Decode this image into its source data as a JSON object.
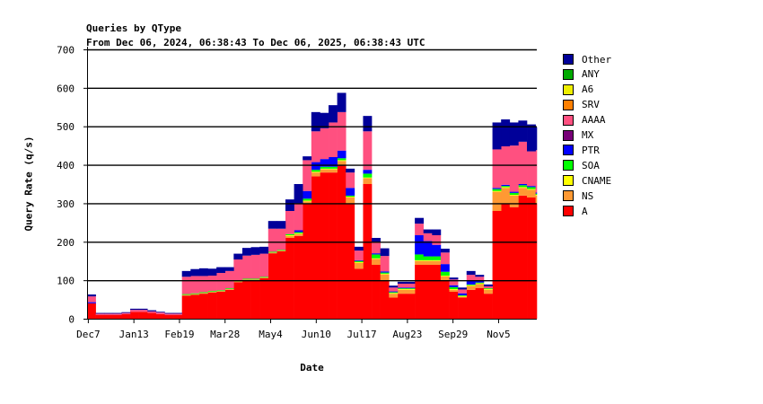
{
  "chart_data": {
    "type": "area",
    "stacked": true,
    "title": "Queries by QType",
    "subtitle": "From Dec 06, 2024, 06:38:43 To Dec 06, 2025, 06:38:43 UTC",
    "xlabel": "Date",
    "ylabel": "Query Rate (q/s)",
    "ylim": [
      0,
      700
    ],
    "yticks": [
      "0",
      "100",
      "200",
      "300",
      "400",
      "500",
      "600",
      "700"
    ],
    "xlim": [
      "2024-12-06",
      "2025-12-06"
    ],
    "xticks": [
      {
        "date": "2024-12-07",
        "label": "Dec7"
      },
      {
        "date": "2025-01-13",
        "label": "Jan13"
      },
      {
        "date": "2025-02-19",
        "label": "Feb19"
      },
      {
        "date": "2025-03-28",
        "label": "Mar28"
      },
      {
        "date": "2025-05-04",
        "label": "May4"
      },
      {
        "date": "2025-06-10",
        "label": "Jun10"
      },
      {
        "date": "2025-07-17",
        "label": "Jul17"
      },
      {
        "date": "2025-08-23",
        "label": "Aug23"
      },
      {
        "date": "2025-09-29",
        "label": "Sep29"
      },
      {
        "date": "2025-11-05",
        "label": "Nov5"
      }
    ],
    "grid": "horizontal",
    "legend_placement": "right",
    "x": [
      "2024-12-06",
      "2024-12-13",
      "2024-12-20",
      "2024-12-27",
      "2025-01-03",
      "2025-01-10",
      "2025-01-17",
      "2025-01-24",
      "2025-01-31",
      "2025-02-07",
      "2025-02-14",
      "2025-02-21",
      "2025-02-28",
      "2025-03-07",
      "2025-03-14",
      "2025-03-21",
      "2025-03-28",
      "2025-04-04",
      "2025-04-11",
      "2025-04-18",
      "2025-04-25",
      "2025-05-02",
      "2025-05-09",
      "2025-05-16",
      "2025-05-23",
      "2025-05-30",
      "2025-06-06",
      "2025-06-13",
      "2025-06-20",
      "2025-06-27",
      "2025-07-04",
      "2025-07-11",
      "2025-07-18",
      "2025-07-25",
      "2025-08-01",
      "2025-08-08",
      "2025-08-15",
      "2025-08-22",
      "2025-08-29",
      "2025-09-05",
      "2025-09-12",
      "2025-09-19",
      "2025-09-26",
      "2025-10-03",
      "2025-10-10",
      "2025-10-17",
      "2025-10-24",
      "2025-10-31",
      "2025-11-07",
      "2025-11-14",
      "2025-11-21",
      "2025-11-28",
      "2025-12-05"
    ],
    "series": [
      {
        "name": "A",
        "color": "#ff0000",
        "values": [
          40,
          10,
          10,
          10,
          12,
          18,
          18,
          15,
          12,
          10,
          10,
          60,
          62,
          65,
          68,
          70,
          75,
          95,
          100,
          100,
          105,
          170,
          175,
          210,
          215,
          300,
          370,
          380,
          380,
          400,
          300,
          130,
          350,
          140,
          100,
          55,
          65,
          65,
          140,
          140,
          140,
          100,
          70,
          55,
          75,
          80,
          65,
          280,
          300,
          290,
          320,
          315,
          300
        ]
      },
      {
        "name": "NS",
        "color": "#ff9933",
        "values": [
          0,
          0,
          0,
          0,
          0,
          0,
          0,
          0,
          0,
          0,
          0,
          2,
          2,
          2,
          2,
          2,
          2,
          2,
          2,
          2,
          2,
          2,
          2,
          5,
          5,
          5,
          10,
          8,
          8,
          10,
          15,
          15,
          15,
          15,
          15,
          10,
          10,
          10,
          10,
          10,
          10,
          10,
          5,
          2,
          10,
          10,
          10,
          50,
          40,
          30,
          20,
          20,
          20
        ]
      },
      {
        "name": "CNAME",
        "color": "#ffff00",
        "values": [
          0,
          0,
          0,
          0,
          0,
          0,
          0,
          0,
          0,
          0,
          0,
          0,
          0,
          0,
          0,
          0,
          0,
          0,
          0,
          0,
          0,
          0,
          0,
          2,
          2,
          2,
          2,
          2,
          2,
          2,
          2,
          2,
          2,
          2,
          2,
          2,
          2,
          2,
          2,
          2,
          2,
          2,
          2,
          2,
          2,
          2,
          2,
          2,
          2,
          2,
          2,
          2,
          2
        ]
      },
      {
        "name": "SOA",
        "color": "#00ff00",
        "values": [
          0,
          0,
          0,
          0,
          0,
          0,
          0,
          0,
          0,
          0,
          0,
          2,
          2,
          2,
          2,
          2,
          2,
          2,
          2,
          2,
          2,
          2,
          2,
          3,
          3,
          5,
          5,
          5,
          5,
          5,
          3,
          3,
          10,
          10,
          3,
          2,
          2,
          2,
          15,
          10,
          10,
          10,
          5,
          2,
          2,
          2,
          2,
          5,
          3,
          5,
          5,
          5,
          3
        ]
      },
      {
        "name": "PTR",
        "color": "#0000ff",
        "values": [
          3,
          0,
          0,
          0,
          0,
          0,
          0,
          0,
          0,
          0,
          0,
          0,
          0,
          0,
          0,
          0,
          0,
          0,
          0,
          0,
          0,
          0,
          0,
          0,
          5,
          20,
          20,
          20,
          25,
          20,
          20,
          2,
          10,
          3,
          3,
          2,
          2,
          2,
          50,
          40,
          30,
          20,
          5,
          5,
          10,
          5,
          0,
          3,
          3,
          3,
          3,
          3,
          3
        ]
      },
      {
        "name": "MX",
        "color": "#770077",
        "values": [
          0,
          0,
          0,
          0,
          0,
          0,
          0,
          0,
          0,
          0,
          0,
          0,
          0,
          0,
          0,
          0,
          0,
          0,
          0,
          0,
          0,
          0,
          0,
          0,
          0,
          0,
          0,
          0,
          0,
          0,
          0,
          0,
          0,
          0,
          0,
          0,
          0,
          0,
          0,
          0,
          0,
          0,
          0,
          0,
          0,
          0,
          0,
          0,
          0,
          0,
          0,
          0,
          0
        ]
      },
      {
        "name": "AAAA",
        "color": "#ff5080",
        "values": [
          15,
          3,
          3,
          3,
          3,
          5,
          5,
          4,
          4,
          3,
          3,
          45,
          45,
          42,
          40,
          45,
          45,
          55,
          60,
          62,
          60,
          60,
          55,
          60,
          70,
          80,
          80,
          80,
          90,
          100,
          40,
          25,
          100,
          30,
          40,
          10,
          10,
          10,
          30,
          20,
          25,
          30,
          15,
          10,
          15,
          10,
          5,
          100,
          100,
          120,
          110,
          90,
          110
        ]
      },
      {
        "name": "SRV",
        "color": "#ff7f00",
        "values": [
          0,
          0,
          0,
          0,
          0,
          0,
          0,
          0,
          0,
          0,
          0,
          0,
          0,
          0,
          0,
          0,
          0,
          0,
          0,
          0,
          0,
          0,
          0,
          0,
          0,
          0,
          0,
          0,
          0,
          0,
          0,
          0,
          0,
          0,
          0,
          0,
          0,
          0,
          0,
          0,
          0,
          0,
          0,
          0,
          0,
          0,
          0,
          0,
          0,
          0,
          0,
          0,
          0
        ]
      },
      {
        "name": "A6",
        "color": "#eeee00",
        "values": [
          0,
          0,
          0,
          0,
          0,
          0,
          0,
          0,
          0,
          0,
          0,
          0,
          0,
          0,
          0,
          0,
          0,
          0,
          0,
          0,
          0,
          0,
          0,
          0,
          0,
          0,
          0,
          0,
          0,
          0,
          0,
          0,
          0,
          0,
          0,
          0,
          0,
          0,
          0,
          0,
          0,
          0,
          0,
          0,
          0,
          0,
          0,
          0,
          0,
          0,
          0,
          0,
          0
        ]
      },
      {
        "name": "ANY",
        "color": "#00aa00",
        "values": [
          0,
          0,
          0,
          0,
          0,
          0,
          0,
          0,
          0,
          0,
          0,
          0,
          0,
          0,
          0,
          0,
          0,
          0,
          0,
          0,
          0,
          0,
          0,
          0,
          0,
          0,
          0,
          0,
          0,
          0,
          0,
          0,
          0,
          0,
          0,
          0,
          0,
          0,
          0,
          0,
          0,
          0,
          0,
          0,
          0,
          0,
          0,
          0,
          0,
          0,
          0,
          0,
          0
        ]
      },
      {
        "name": "Other",
        "color": "#000099",
        "values": [
          5,
          2,
          2,
          2,
          2,
          3,
          3,
          3,
          2,
          2,
          2,
          15,
          18,
          20,
          18,
          15,
          10,
          15,
          20,
          20,
          18,
          20,
          20,
          30,
          50,
          10,
          50,
          40,
          45,
          50,
          10,
          10,
          40,
          10,
          20,
          5,
          5,
          5,
          15,
          10,
          15,
          10,
          5,
          5,
          10,
          5,
          5,
          70,
          70,
          60,
          55,
          70,
          60
        ]
      }
    ],
    "legend_order": [
      "Other",
      "ANY",
      "A6",
      "SRV",
      "AAAA",
      "MX",
      "PTR",
      "SOA",
      "CNAME",
      "NS",
      "A"
    ]
  }
}
